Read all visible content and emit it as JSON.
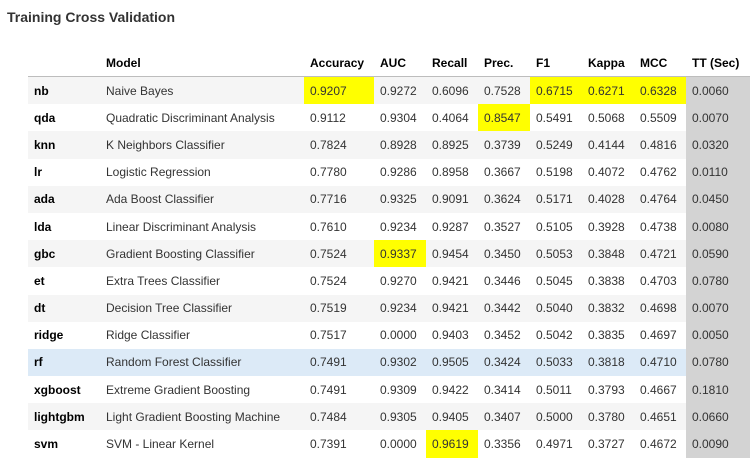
{
  "title": "Training Cross Validation",
  "highlight_color": "#ffff00",
  "timing_column_color": "#d3d3d3",
  "columns": [
    "",
    "Model",
    "Accuracy",
    "AUC",
    "Recall",
    "Prec.",
    "F1",
    "Kappa",
    "MCC",
    "TT (Sec)"
  ],
  "rows": [
    {
      "id": "nb",
      "model": "Naive Bayes",
      "acc": "0.9207",
      "auc": "0.9272",
      "recall": "0.6096",
      "prec": "0.7528",
      "f1": "0.6715",
      "kappa": "0.6271",
      "mcc": "0.6328",
      "tt": "0.0060"
    },
    {
      "id": "qda",
      "model": "Quadratic Discriminant Analysis",
      "acc": "0.9112",
      "auc": "0.9304",
      "recall": "0.4064",
      "prec": "0.8547",
      "f1": "0.5491",
      "kappa": "0.5068",
      "mcc": "0.5509",
      "tt": "0.0070"
    },
    {
      "id": "knn",
      "model": "K Neighbors Classifier",
      "acc": "0.7824",
      "auc": "0.8928",
      "recall": "0.8925",
      "prec": "0.3739",
      "f1": "0.5249",
      "kappa": "0.4144",
      "mcc": "0.4816",
      "tt": "0.0320"
    },
    {
      "id": "lr",
      "model": "Logistic Regression",
      "acc": "0.7780",
      "auc": "0.9286",
      "recall": "0.8958",
      "prec": "0.3667",
      "f1": "0.5198",
      "kappa": "0.4072",
      "mcc": "0.4762",
      "tt": "0.0110"
    },
    {
      "id": "ada",
      "model": "Ada Boost Classifier",
      "acc": "0.7716",
      "auc": "0.9325",
      "recall": "0.9091",
      "prec": "0.3624",
      "f1": "0.5171",
      "kappa": "0.4028",
      "mcc": "0.4764",
      "tt": "0.0450"
    },
    {
      "id": "lda",
      "model": "Linear Discriminant Analysis",
      "acc": "0.7610",
      "auc": "0.9234",
      "recall": "0.9287",
      "prec": "0.3527",
      "f1": "0.5105",
      "kappa": "0.3928",
      "mcc": "0.4738",
      "tt": "0.0080"
    },
    {
      "id": "gbc",
      "model": "Gradient Boosting Classifier",
      "acc": "0.7524",
      "auc": "0.9337",
      "recall": "0.9454",
      "prec": "0.3450",
      "f1": "0.5053",
      "kappa": "0.3848",
      "mcc": "0.4721",
      "tt": "0.0590"
    },
    {
      "id": "et",
      "model": "Extra Trees Classifier",
      "acc": "0.7524",
      "auc": "0.9270",
      "recall": "0.9421",
      "prec": "0.3446",
      "f1": "0.5045",
      "kappa": "0.3838",
      "mcc": "0.4703",
      "tt": "0.0780"
    },
    {
      "id": "dt",
      "model": "Decision Tree Classifier",
      "acc": "0.7519",
      "auc": "0.9234",
      "recall": "0.9421",
      "prec": "0.3442",
      "f1": "0.5040",
      "kappa": "0.3832",
      "mcc": "0.4698",
      "tt": "0.0070"
    },
    {
      "id": "ridge",
      "model": "Ridge Classifier",
      "acc": "0.7517",
      "auc": "0.0000",
      "recall": "0.9403",
      "prec": "0.3452",
      "f1": "0.5042",
      "kappa": "0.3835",
      "mcc": "0.4697",
      "tt": "0.0050"
    },
    {
      "id": "rf",
      "model": "Random Forest Classifier",
      "acc": "0.7491",
      "auc": "0.9302",
      "recall": "0.9505",
      "prec": "0.3424",
      "f1": "0.5033",
      "kappa": "0.3818",
      "mcc": "0.4710",
      "tt": "0.0780"
    },
    {
      "id": "xgboost",
      "model": "Extreme Gradient Boosting",
      "acc": "0.7491",
      "auc": "0.9309",
      "recall": "0.9422",
      "prec": "0.3414",
      "f1": "0.5011",
      "kappa": "0.3793",
      "mcc": "0.4667",
      "tt": "0.1810"
    },
    {
      "id": "lightgbm",
      "model": "Light Gradient Boosting Machine",
      "acc": "0.7484",
      "auc": "0.9305",
      "recall": "0.9405",
      "prec": "0.3407",
      "f1": "0.5000",
      "kappa": "0.3780",
      "mcc": "0.4651",
      "tt": "0.0660"
    },
    {
      "id": "svm",
      "model": "SVM - Linear Kernel",
      "acc": "0.7391",
      "auc": "0.0000",
      "recall": "0.9619",
      "prec": "0.3356",
      "f1": "0.4971",
      "kappa": "0.3727",
      "mcc": "0.4672",
      "tt": "0.0090"
    }
  ],
  "highlighted_cells": [
    {
      "row": "nb",
      "col": "acc"
    },
    {
      "row": "nb",
      "col": "f1"
    },
    {
      "row": "nb",
      "col": "kappa"
    },
    {
      "row": "nb",
      "col": "mcc"
    },
    {
      "row": "qda",
      "col": "prec"
    },
    {
      "row": "gbc",
      "col": "auc"
    },
    {
      "row": "svm",
      "col": "recall"
    }
  ],
  "hovered_row": "rf"
}
